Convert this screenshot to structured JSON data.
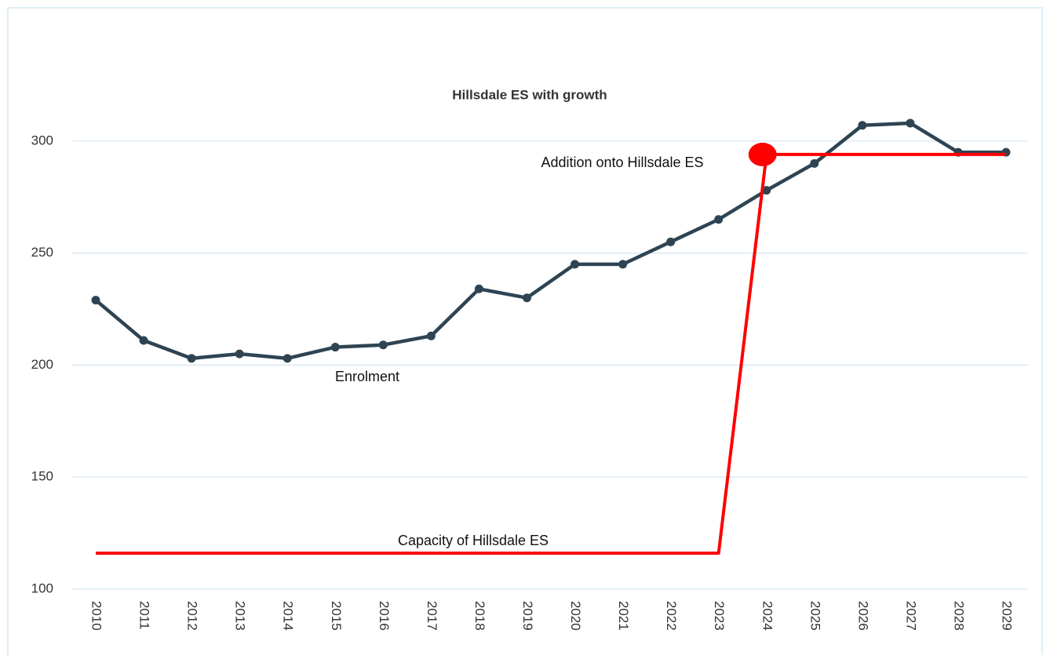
{
  "chart_data": {
    "type": "line",
    "title": "Hillsdale ES with growth",
    "categories": [
      "2010",
      "2011",
      "2012",
      "2013",
      "2014",
      "2015",
      "2016",
      "2017",
      "2018",
      "2019",
      "2020",
      "2021",
      "2022",
      "2023",
      "2024",
      "2025",
      "2026",
      "2027",
      "2028",
      "2029"
    ],
    "series": [
      {
        "name": "Enrolment",
        "color": "#2e4453",
        "values": [
          229,
          211,
          203,
          205,
          203,
          208,
          209,
          213,
          234,
          230,
          245,
          245,
          255,
          265,
          278,
          290,
          307,
          308,
          295,
          295
        ]
      },
      {
        "name": "Capacity of Hillsdale ES",
        "color": "#ff0000",
        "values": [
          116,
          116,
          116,
          116,
          116,
          116,
          116,
          116,
          116,
          116,
          116,
          116,
          116,
          116,
          294,
          294,
          294,
          294,
          294,
          294
        ]
      }
    ],
    "annotations": [
      "Addition onto Hillsdale ES"
    ],
    "ylim": [
      100,
      350
    ],
    "yticks": [
      100,
      150,
      200,
      250,
      300
    ],
    "grid": true
  }
}
